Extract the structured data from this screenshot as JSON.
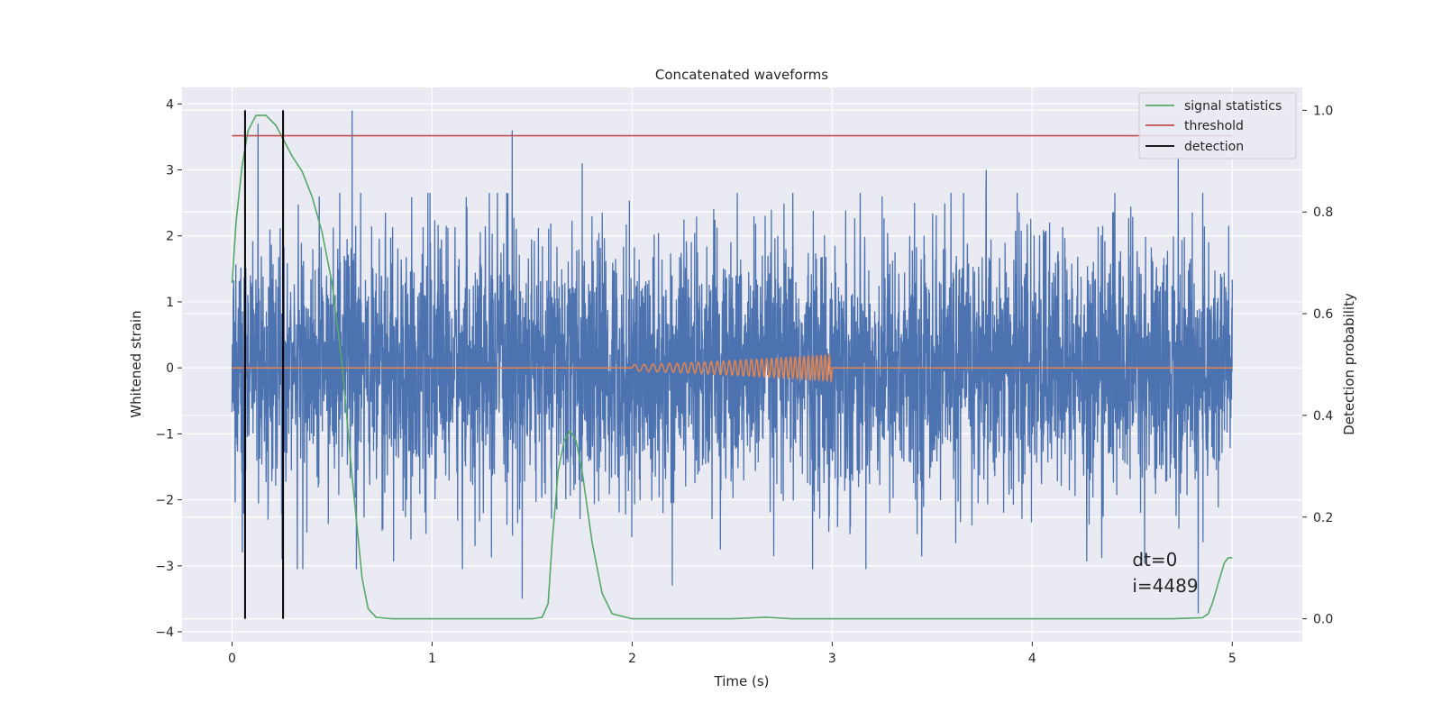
{
  "chart_data": {
    "type": "line",
    "title": "Concatenated waveforms",
    "xlabel": "Time (s)",
    "ylabel": "Whitened strain",
    "y2label": "Detection probability",
    "xlim": [
      -0.25,
      5.35
    ],
    "ylim": [
      -4.15,
      4.25
    ],
    "y2lim": [
      -0.045,
      1.045
    ],
    "xticks": [
      0,
      1,
      2,
      3,
      4,
      5
    ],
    "xtick_labels": [
      "0",
      "1",
      "2",
      "3",
      "4",
      "5"
    ],
    "yticks": [
      -4,
      -3,
      -2,
      -1,
      0,
      1,
      2,
      3,
      4
    ],
    "ytick_labels": [
      "−4",
      "−3",
      "−2",
      "−1",
      "0",
      "1",
      "2",
      "3",
      "4"
    ],
    "y2ticks": [
      0.0,
      0.2,
      0.4,
      0.6,
      0.8,
      1.0
    ],
    "y2tick_labels": [
      "0.0",
      "0.2",
      "0.4",
      "0.6",
      "0.8",
      "1.0"
    ],
    "grid": true,
    "legend_position": "top-right",
    "background_color": "#eaeaf2",
    "series": [
      {
        "name": "",
        "kind": "noise",
        "color": "#4c72b0",
        "x_range": [
          0,
          5
        ],
        "typical_amplitude": 1.0,
        "peak_min": -3.72,
        "peak_max": 3.9,
        "peaks": [
          [
            0.6,
            3.9
          ],
          [
            1.4,
            3.6
          ],
          [
            0.13,
            3.7
          ],
          [
            1.75,
            3.1
          ],
          [
            4.83,
            -3.72
          ],
          [
            1.45,
            -3.5
          ],
          [
            2.2,
            -3.3
          ],
          [
            4.73,
            3.2
          ],
          [
            3.77,
            3.0
          ],
          [
            0.25,
            -2.9
          ]
        ]
      },
      {
        "name": "",
        "kind": "chirp",
        "color": "#dd8452",
        "x_range": [
          0,
          5
        ],
        "chirp_start": 2.0,
        "chirp_end": 3.0,
        "amplitude_start": 0.05,
        "amplitude_end": 0.2,
        "frequency_start": 20,
        "frequency_end": 50
      },
      {
        "name": "signal statistics",
        "axis": "right",
        "color": "#55a868",
        "x": [
          0.0,
          0.02,
          0.05,
          0.08,
          0.12,
          0.17,
          0.22,
          0.26,
          0.3,
          0.35,
          0.4,
          0.45,
          0.5,
          0.55,
          0.6,
          0.65,
          0.68,
          0.72,
          0.8,
          1.0,
          1.3,
          1.5,
          1.55,
          1.58,
          1.6,
          1.63,
          1.66,
          1.69,
          1.72,
          1.75,
          1.8,
          1.85,
          1.9,
          2.0,
          2.5,
          2.67,
          2.8,
          3.0,
          4.0,
          4.7,
          4.85,
          4.88,
          4.9,
          4.93,
          4.96,
          4.98,
          5.0
        ],
        "y": [
          0.66,
          0.78,
          0.89,
          0.96,
          0.99,
          0.99,
          0.97,
          0.94,
          0.91,
          0.88,
          0.83,
          0.76,
          0.66,
          0.5,
          0.28,
          0.08,
          0.02,
          0.003,
          0.0,
          0.0,
          0.0,
          0.0,
          0.003,
          0.03,
          0.15,
          0.29,
          0.35,
          0.37,
          0.35,
          0.29,
          0.15,
          0.05,
          0.01,
          0.0,
          0.0,
          0.003,
          0.0,
          0.0,
          0.0,
          0.0,
          0.002,
          0.01,
          0.03,
          0.07,
          0.11,
          0.12,
          0.12
        ]
      },
      {
        "name": "threshold",
        "axis": "right",
        "color": "#c44e52",
        "x": [
          0,
          5
        ],
        "y": [
          0.95,
          0.95
        ]
      },
      {
        "name": "detection",
        "axis": "right",
        "color": "#000000",
        "kind": "vlines",
        "x": [
          0.065,
          0.255
        ],
        "y_range": [
          0,
          1.0
        ]
      }
    ],
    "annotations": [
      {
        "text": "dt=0",
        "x": 4.5,
        "y": -3.0,
        "axis": "left"
      },
      {
        "text": "i=4489",
        "x": 4.5,
        "y": -3.4,
        "axis": "left"
      }
    ]
  }
}
